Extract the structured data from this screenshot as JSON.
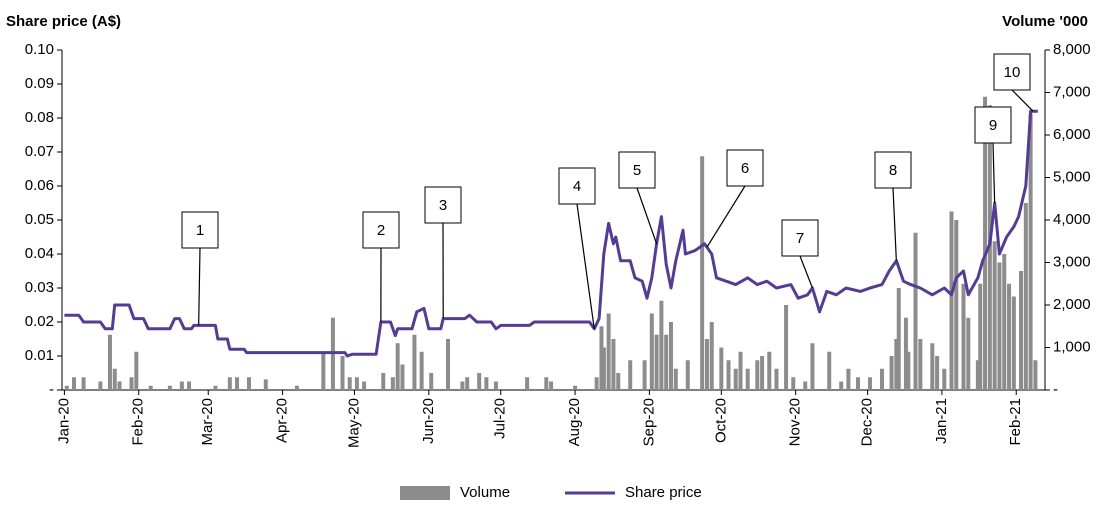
{
  "chart_data": {
    "type": "combo",
    "y_label": "Share price (A$)",
    "y2_label": "Volume '000",
    "xlim": [
      -1,
      409
    ],
    "xticks": [
      {
        "value": 0,
        "label": "Jan-20"
      },
      {
        "value": 31,
        "label": "Feb-20"
      },
      {
        "value": 60,
        "label": "Mar-20"
      },
      {
        "value": 91,
        "label": "Apr-20"
      },
      {
        "value": 121,
        "label": "May-20"
      },
      {
        "value": 152,
        "label": "Jun-20"
      },
      {
        "value": 182,
        "label": "Jul-20"
      },
      {
        "value": 213,
        "label": "Aug-20"
      },
      {
        "value": 244,
        "label": "Sep-20"
      },
      {
        "value": 274,
        "label": "Oct-20"
      },
      {
        "value": 305,
        "label": "Nov-20"
      },
      {
        "value": 335,
        "label": "Dec-20"
      },
      {
        "value": 366,
        "label": "Jan-21"
      },
      {
        "value": 397,
        "label": "Feb-21"
      }
    ],
    "ylim": [
      0,
      0.1
    ],
    "yticks": [
      {
        "value": 0,
        "label": "-"
      },
      0.01,
      0.02,
      0.03,
      0.04,
      0.05,
      0.06,
      0.07,
      0.08,
      0.09,
      {
        "value": 0.1,
        "label": "0.10"
      }
    ],
    "y2lim": [
      0,
      8000
    ],
    "y2ticks": [
      {
        "value": 0,
        "label": "-"
      },
      {
        "value": 1000,
        "label": "1,000"
      },
      {
        "value": 2000,
        "label": "2,000"
      },
      {
        "value": 3000,
        "label": "3,000"
      },
      {
        "value": 4000,
        "label": "4,000"
      },
      {
        "value": 5000,
        "label": "5,000"
      },
      {
        "value": 6000,
        "label": "6,000"
      },
      {
        "value": 7000,
        "label": "7,000"
      },
      {
        "value": 8000,
        "label": "8,000"
      }
    ],
    "legend": "bottom",
    "series": [
      {
        "name": "Volume",
        "type": "bar",
        "axis": "y2",
        "color": "#8c8c8c",
        "x": [
          1,
          4,
          8,
          15,
          19,
          21,
          23,
          28,
          30,
          36,
          44,
          49,
          52,
          63,
          69,
          72,
          77,
          84,
          97,
          108,
          112,
          116,
          119,
          122,
          125,
          133,
          137,
          139,
          141,
          146,
          149,
          153,
          160,
          166,
          168,
          173,
          176,
          180,
          193,
          201,
          203,
          213,
          222,
          224,
          225,
          227,
          229,
          231,
          236,
          242,
          245,
          247,
          249,
          251,
          253,
          255,
          260,
          266,
          268,
          270,
          274,
          277,
          280,
          282,
          285,
          289,
          291,
          294,
          297,
          301,
          304,
          309,
          312,
          319,
          324,
          327,
          331,
          336,
          341,
          345,
          347,
          348,
          351,
          352,
          355,
          357,
          362,
          364,
          367,
          370,
          372,
          375,
          377,
          381,
          382,
          384,
          386,
          388,
          390,
          392,
          394,
          396,
          399,
          401,
          403,
          405
        ],
        "values": [
          100,
          300,
          300,
          200,
          1300,
          500,
          200,
          300,
          900,
          100,
          100,
          200,
          200,
          100,
          300,
          300,
          300,
          250,
          100,
          900,
          1700,
          800,
          300,
          300,
          200,
          400,
          300,
          1100,
          600,
          1300,
          900,
          400,
          1200,
          200,
          300,
          400,
          300,
          200,
          300,
          300,
          200,
          100,
          300,
          1500,
          1000,
          1800,
          1200,
          400,
          700,
          700,
          1800,
          1300,
          2100,
          1300,
          1600,
          500,
          700,
          5500,
          1200,
          1600,
          1000,
          700,
          500,
          900,
          500,
          700,
          800,
          900,
          500,
          2000,
          300,
          200,
          1100,
          900,
          200,
          500,
          300,
          300,
          500,
          800,
          1200,
          2400,
          1700,
          900,
          3700,
          1200,
          1100,
          800,
          500,
          4200,
          4000,
          2500,
          1700,
          700,
          2500,
          6900,
          6700,
          3500,
          3000,
          3200,
          2500,
          2200,
          2800,
          4400,
          6500,
          700
        ]
      },
      {
        "name": "Share price",
        "type": "line",
        "axis": "y",
        "color": "#553c92",
        "x": [
          0,
          6,
          8,
          15,
          17,
          20,
          21,
          27,
          29,
          33,
          35,
          44,
          46,
          48,
          50,
          53,
          54,
          63,
          64,
          68,
          69,
          75,
          76,
          117,
          118,
          120,
          130,
          132,
          136,
          138,
          139,
          145,
          147,
          150,
          152,
          157,
          158,
          167,
          169,
          172,
          178,
          180,
          182,
          194,
          196,
          219,
          221,
          223,
          225,
          227,
          229,
          230,
          232,
          236,
          238,
          241,
          243,
          245,
          247,
          249,
          251,
          253,
          255,
          258,
          259,
          263,
          267,
          270,
          272,
          276,
          280,
          285,
          289,
          293,
          297,
          303,
          306,
          310,
          312,
          315,
          318,
          322,
          326,
          332,
          336,
          341,
          344,
          347,
          350,
          353,
          357,
          362,
          367,
          370,
          372,
          375,
          377,
          381,
          383,
          386,
          388,
          390,
          393,
          396,
          398,
          401,
          403,
          406
        ],
        "values": [
          0.022,
          0.022,
          0.02,
          0.02,
          0.018,
          0.018,
          0.025,
          0.025,
          0.021,
          0.021,
          0.018,
          0.018,
          0.021,
          0.021,
          0.018,
          0.018,
          0.019,
          0.019,
          0.015,
          0.015,
          0.012,
          0.012,
          0.011,
          0.011,
          0.01,
          0.0105,
          0.0105,
          0.02,
          0.02,
          0.016,
          0.018,
          0.018,
          0.023,
          0.024,
          0.018,
          0.018,
          0.021,
          0.021,
          0.022,
          0.02,
          0.02,
          0.018,
          0.019,
          0.019,
          0.02,
          0.02,
          0.018,
          0.021,
          0.04,
          0.049,
          0.043,
          0.045,
          0.038,
          0.038,
          0.033,
          0.032,
          0.027,
          0.033,
          0.043,
          0.051,
          0.037,
          0.03,
          0.038,
          0.047,
          0.04,
          0.041,
          0.043,
          0.04,
          0.033,
          0.032,
          0.031,
          0.033,
          0.031,
          0.032,
          0.03,
          0.031,
          0.027,
          0.028,
          0.03,
          0.023,
          0.029,
          0.028,
          0.03,
          0.029,
          0.03,
          0.031,
          0.035,
          0.038,
          0.032,
          0.031,
          0.03,
          0.028,
          0.03,
          0.028,
          0.033,
          0.035,
          0.028,
          0.033,
          0.038,
          0.043,
          0.055,
          0.04,
          0.045,
          0.048,
          0.051,
          0.06,
          0.082,
          0.082
        ]
      }
    ],
    "annotations": [
      {
        "label": "1",
        "x": 56
      },
      {
        "label": "2",
        "x": 132
      },
      {
        "label": "3",
        "x": 158
      },
      {
        "label": "4",
        "x": 221
      },
      {
        "label": "5",
        "x": 247
      },
      {
        "label": "6",
        "x": 268
      },
      {
        "label": "7",
        "x": 312
      },
      {
        "label": "8",
        "x": 347
      },
      {
        "label": "9",
        "x": 388
      },
      {
        "label": "10",
        "x": 404
      }
    ]
  }
}
